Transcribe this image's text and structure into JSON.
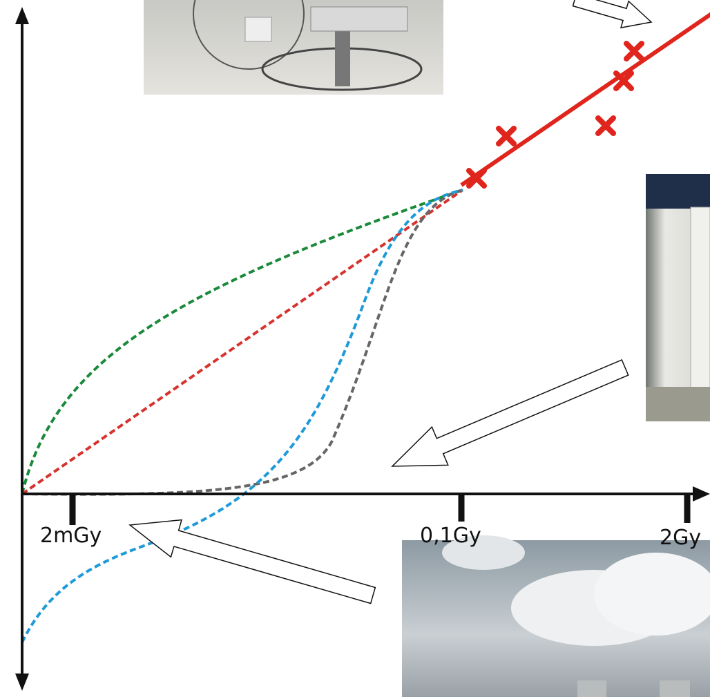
{
  "axis_labels": [
    "2mGy",
    "0,1Gy",
    "2Gy"
  ]
}
